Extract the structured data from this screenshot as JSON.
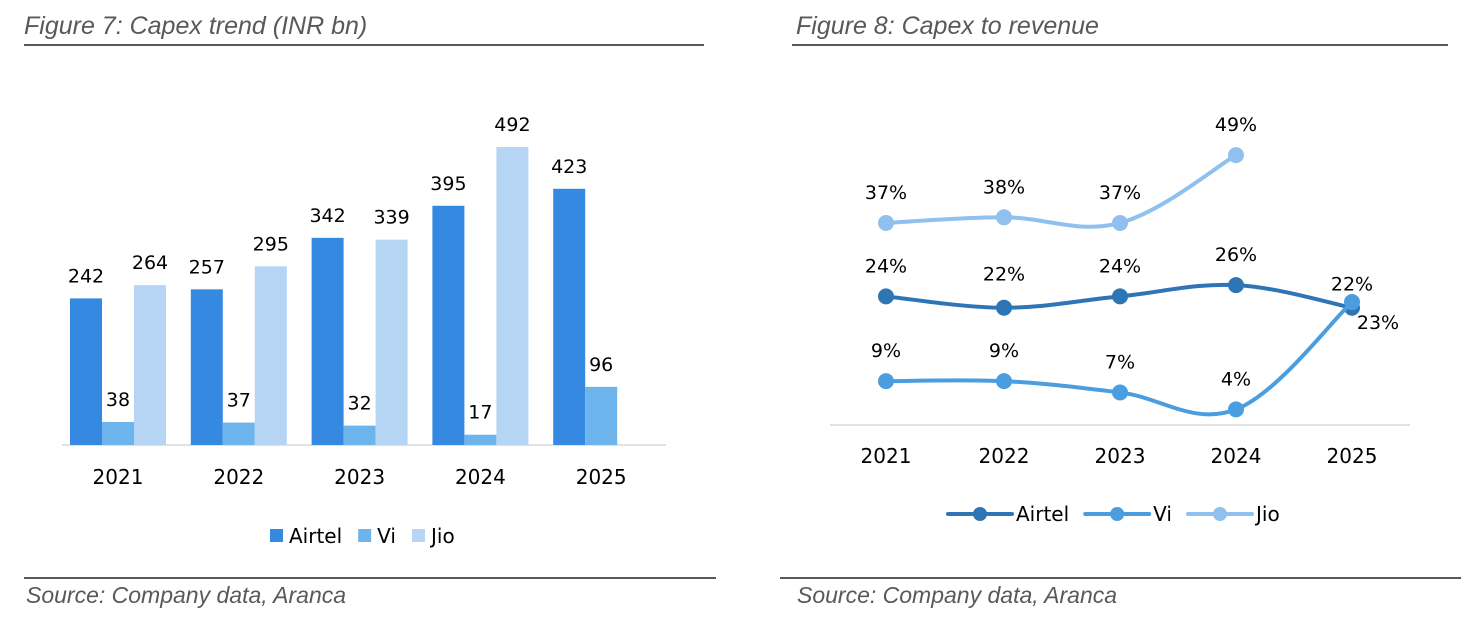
{
  "left_figure": {
    "title": "Figure 7: Capex trend (INR bn)",
    "source": "Source: Company data, Aranca"
  },
  "right_figure": {
    "title": "Figure 8: Capex to revenue",
    "source": "Source: Company data, Aranca"
  },
  "colors": {
    "airtel_bar": "#3589E0",
    "vi_bar": "#6EB4EC",
    "jio_bar": "#B6D5F5",
    "airtel_line": "#2E75B6",
    "vi_line": "#4A9EE0",
    "jio_line": "#8FC0EE"
  },
  "chart_data": [
    {
      "type": "bar",
      "title": "Figure 7: Capex trend (INR bn)",
      "categories": [
        "2021",
        "2022",
        "2023",
        "2024",
        "2025"
      ],
      "series": [
        {
          "name": "Airtel",
          "values": [
            242,
            257,
            342,
            395,
            423
          ],
          "labels": [
            "242",
            "257",
            "342",
            "395",
            "423"
          ]
        },
        {
          "name": "Vi",
          "values": [
            38,
            37,
            32,
            17,
            96
          ],
          "labels": [
            "38",
            "37",
            "32",
            "17",
            "96"
          ]
        },
        {
          "name": "Jio",
          "values": [
            264,
            295,
            339,
            492,
            null
          ],
          "labels": [
            "264",
            "295",
            "339",
            "492",
            ""
          ]
        }
      ],
      "ylim": [
        0,
        530
      ],
      "legend": "bottom"
    },
    {
      "type": "line",
      "title": "Figure 8: Capex to revenue",
      "categories": [
        "2021",
        "2022",
        "2023",
        "2024",
        "2025"
      ],
      "series": [
        {
          "name": "Airtel",
          "values": [
            24,
            22,
            24,
            26,
            22
          ],
          "labels": [
            "24%",
            "22%",
            "24%",
            "26%",
            "22%"
          ]
        },
        {
          "name": "Vi",
          "values": [
            9,
            9,
            7,
            4,
            23
          ],
          "labels": [
            "9%",
            "9%",
            "7%",
            "4%",
            "23%"
          ]
        },
        {
          "name": "Jio",
          "values": [
            37,
            38,
            37,
            49,
            null
          ],
          "labels": [
            "37%",
            "38%",
            "37%",
            "49%",
            ""
          ]
        }
      ],
      "ylim": [
        0,
        60
      ],
      "legend": "bottom"
    }
  ]
}
